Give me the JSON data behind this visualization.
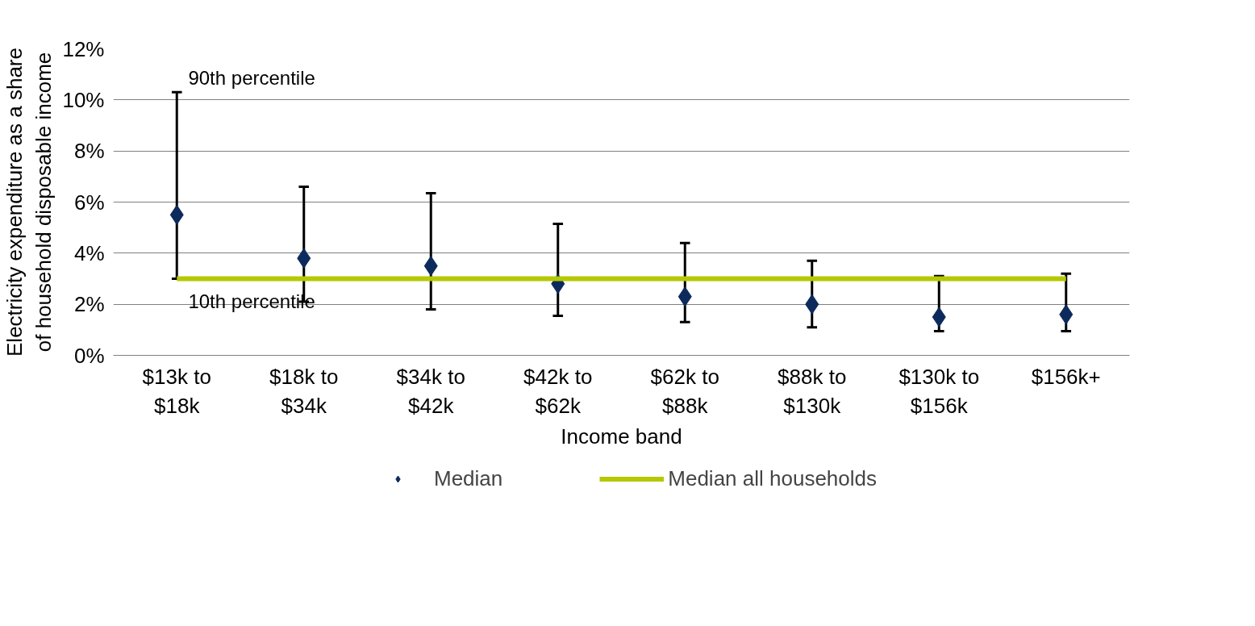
{
  "chart_data": {
    "type": "scatter",
    "xlabel": "Income band",
    "ylabel": "Electricity expenditure as a share of household disposable income",
    "categories": [
      "$13k to $18k",
      "$18k to $34k",
      "$34k to $42k",
      "$42k to $62k",
      "$62k to $88k",
      "$88k to $130k",
      "$130k to $156k",
      "$156k+"
    ],
    "series": [
      {
        "name": "Median",
        "marker": "diamond",
        "color": "#0d2a5c",
        "values": [
          5.5,
          3.8,
          3.5,
          2.8,
          2.3,
          2.0,
          1.5,
          1.6
        ],
        "errors": [
          [
            3.0,
            10.3
          ],
          [
            2.1,
            6.6
          ],
          [
            1.8,
            6.35
          ],
          [
            1.55,
            5.15
          ],
          [
            1.3,
            4.4
          ],
          [
            1.1,
            3.7
          ],
          [
            0.95,
            3.1
          ],
          [
            0.95,
            3.2
          ]
        ]
      },
      {
        "name": "Median all households",
        "type": "line",
        "color": "#b5c800",
        "values": [
          3.0,
          3.0,
          3.0,
          3.0,
          3.0,
          3.0,
          3.0,
          3.0
        ]
      }
    ],
    "annotations": [
      {
        "text": "90th percentile",
        "x": "$13k to $18k",
        "y": 10.3
      },
      {
        "text": "10th percentile",
        "x": "$13k to $18k",
        "y": 3.0
      }
    ],
    "ylim": [
      0,
      12
    ],
    "yticks": [
      {
        "value": 0,
        "label": "0%"
      },
      {
        "value": 2,
        "label": "2%"
      },
      {
        "value": 4,
        "label": "4%"
      },
      {
        "value": 6,
        "label": "6%"
      },
      {
        "value": 8,
        "label": "8%"
      },
      {
        "value": 10,
        "label": "10%"
      },
      {
        "value": 12,
        "label": "12%"
      }
    ],
    "grid": "y",
    "legend": "bottom"
  }
}
